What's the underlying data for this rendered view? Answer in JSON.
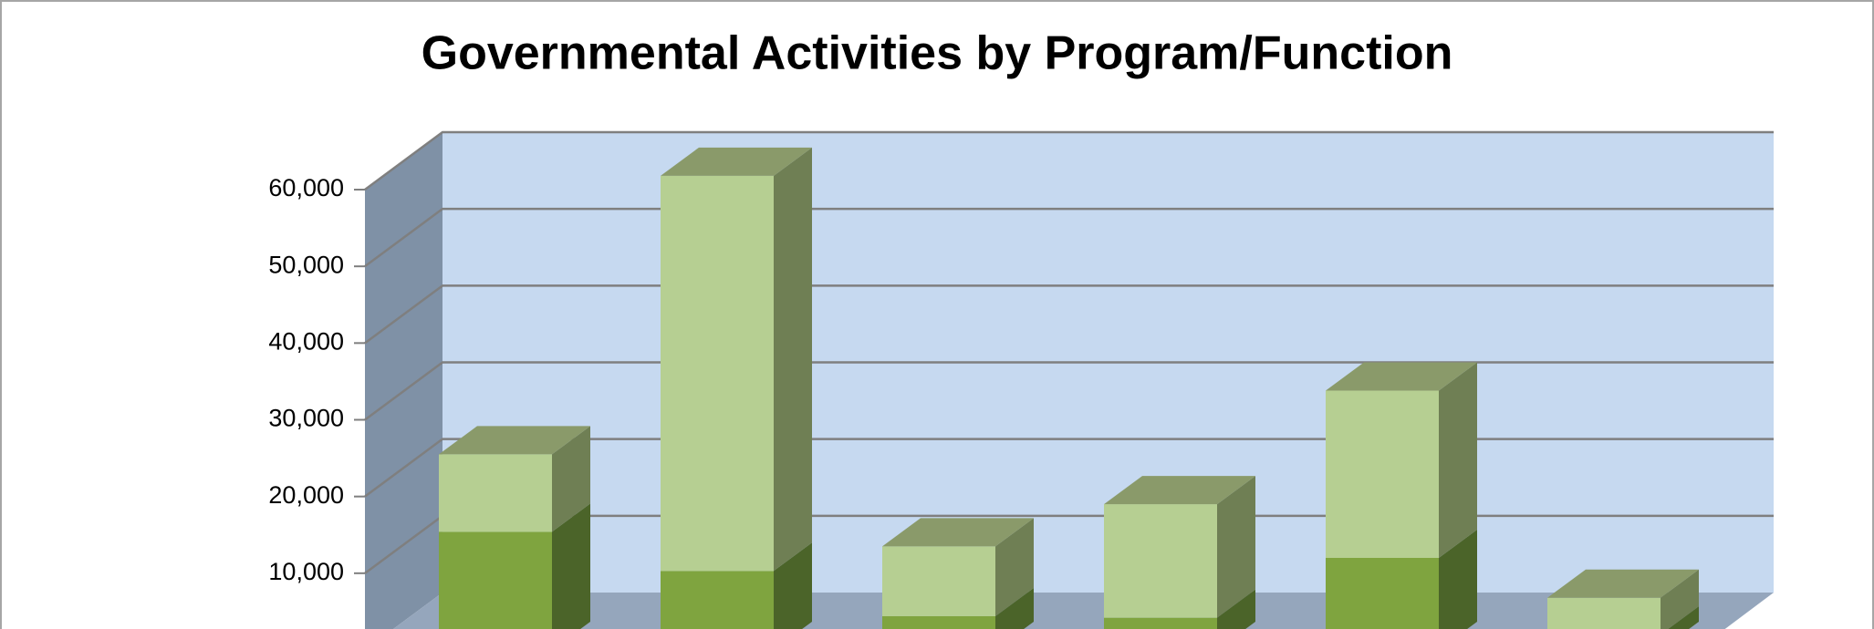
{
  "chart_data": {
    "type": "bar3d_stacked",
    "title": "Governmental Activities by Program/Function",
    "categories": [
      null,
      null,
      null,
      null,
      null,
      null
    ],
    "series": [
      {
        "color": "#7fa43f",
        "side_color": "#4b6429",
        "top_color": "#6a8836",
        "values": [
          15400,
          10300,
          4400,
          4200,
          12000,
          2000
        ]
      },
      {
        "color": "#b6cf92",
        "side_color": "#6f7f54",
        "top_color": "#8a9a6a",
        "values": [
          10100,
          51500,
          9100,
          14800,
          21800,
          4800
        ]
      }
    ],
    "ylim": [
      0,
      60000
    ],
    "yticks": [
      {
        "value": 10000,
        "label": "10,000"
      },
      {
        "value": 20000,
        "label": "20,000"
      },
      {
        "value": 30000,
        "label": "30,000"
      },
      {
        "value": 40000,
        "label": "40,000"
      },
      {
        "value": 50000,
        "label": "50,000"
      },
      {
        "value": 60000,
        "label": "60,000"
      }
    ],
    "grid": true
  }
}
